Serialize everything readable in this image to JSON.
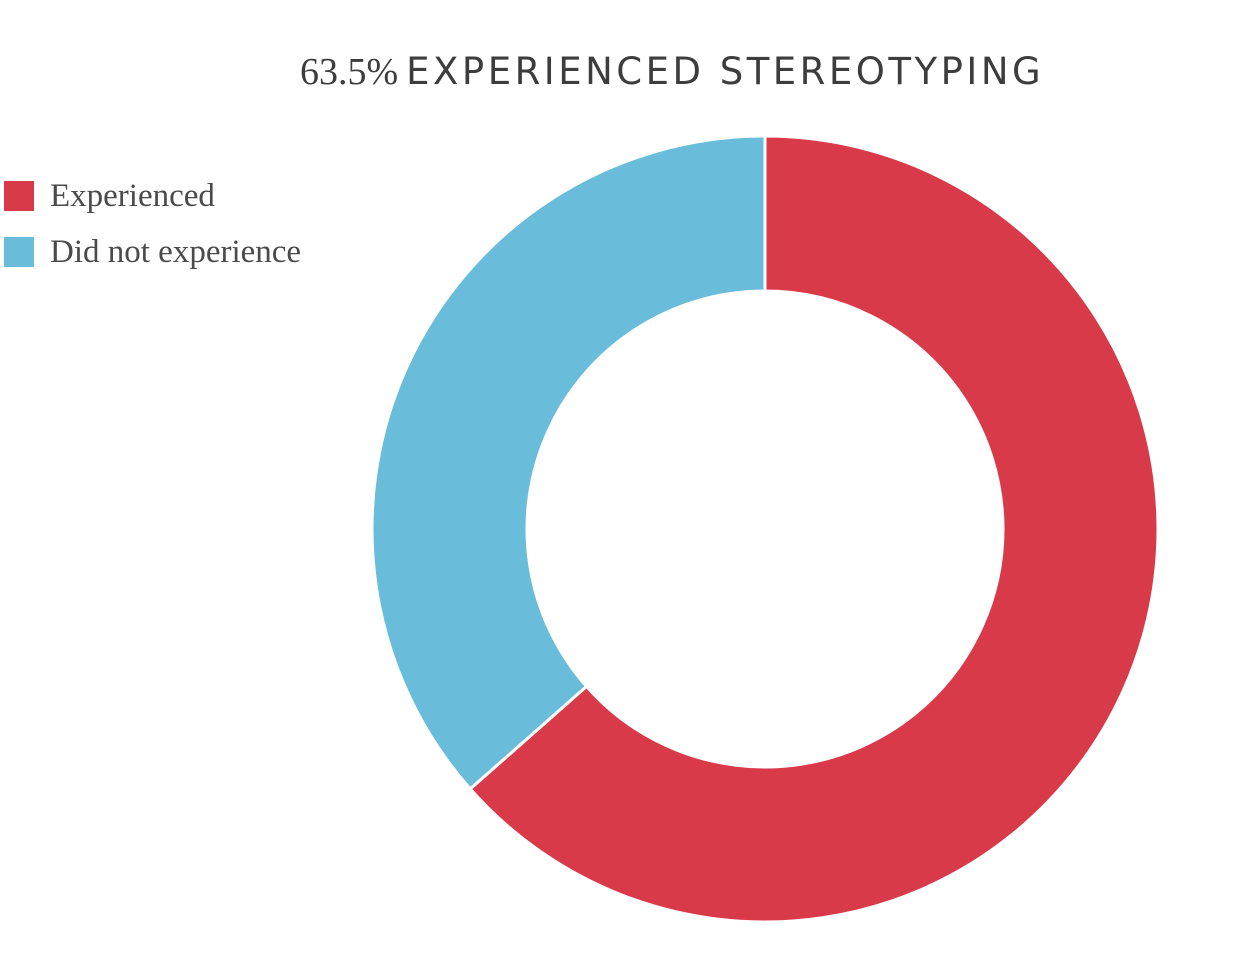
{
  "title": {
    "percent": "63.5%",
    "text": "EXPERIENCED STEREOTYPING"
  },
  "legend": {
    "items": [
      {
        "label": "Experienced",
        "color": "#d83a49"
      },
      {
        "label": "Did not experience",
        "color": "#69bcda"
      }
    ]
  },
  "chart_data": {
    "type": "pie",
    "variant": "donut",
    "title": "63.5% EXPERIENCED STEREOTYPING",
    "legend_position": "top-left",
    "series": [
      {
        "values": [
          63.5,
          36.5
        ],
        "categories": [
          "Experienced",
          "Did not experience"
        ],
        "colors": [
          "#d83a49",
          "#69bcda"
        ]
      }
    ]
  }
}
